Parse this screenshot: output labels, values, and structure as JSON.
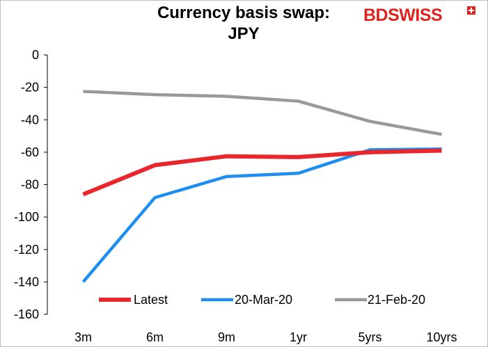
{
  "chart_data": {
    "type": "line",
    "title_line1": "Currency basis swap:",
    "title_line2": "JPY",
    "categories": [
      "3m",
      "6m",
      "9m",
      "1yr",
      "5yrs",
      "10yrs"
    ],
    "ylim": [
      -160,
      0
    ],
    "yticks": [
      0,
      -20,
      -40,
      -60,
      -80,
      -100,
      -120,
      -140,
      -160
    ],
    "grid": false,
    "legend_position": "bottom",
    "series": [
      {
        "name": "Latest",
        "color": "#e8262b",
        "values": [
          -86,
          -68,
          -62.5,
          -63,
          -60,
          -59
        ]
      },
      {
        "name": "20-Mar-20",
        "color": "#1f8ef1",
        "values": [
          -140,
          -88,
          -75,
          -73,
          -58.5,
          -58
        ]
      },
      {
        "name": "21-Feb-20",
        "color": "#999999",
        "values": [
          -22.5,
          -24.5,
          -25.5,
          -28.5,
          -41,
          -49
        ]
      }
    ]
  },
  "brand": {
    "logo_text_a": "BD",
    "logo_text_b": "SWISS",
    "brand_color": "#e1231f"
  }
}
